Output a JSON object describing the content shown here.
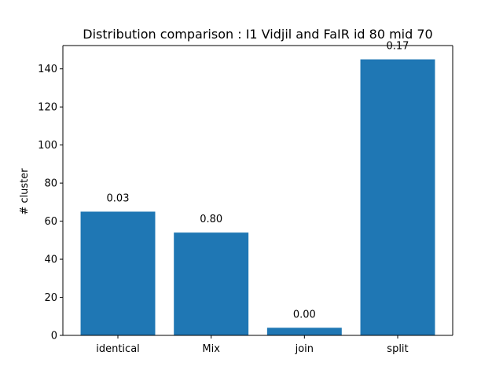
{
  "chart_data": {
    "type": "bar",
    "title": "Distribution comparison : I1 Vidjil and FaIR id 80 mid 70",
    "xlabel": "",
    "ylabel": "# cluster",
    "categories": [
      "identical",
      "Mix",
      "join",
      "split"
    ],
    "values": [
      65,
      54,
      4,
      145
    ],
    "bar_labels": [
      "0.03",
      "0.80",
      "0.00",
      "0.17"
    ],
    "ylim": [
      0,
      152.25
    ],
    "yticks": [
      0,
      20,
      40,
      60,
      80,
      100,
      120,
      140
    ],
    "bar_color": "#1f77b4",
    "grid": false,
    "legend": "none"
  }
}
